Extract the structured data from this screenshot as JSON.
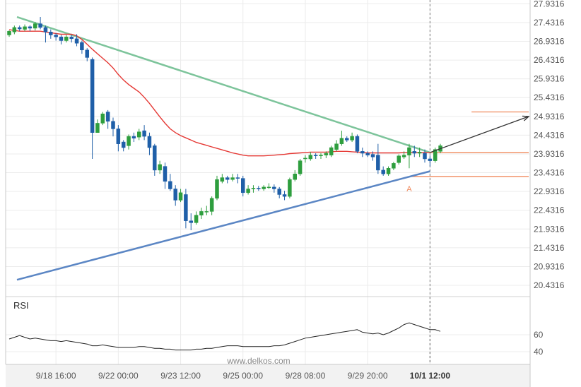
{
  "chart_data": {
    "type": "candlestick",
    "y_ticks": [
      "27.9316",
      "27.4316",
      "26.9316",
      "26.4316",
      "25.9316",
      "25.4316",
      "24.9316",
      "24.4316",
      "23.9316",
      "23.4316",
      "22.9316",
      "22.4316",
      "21.9316",
      "21.4316",
      "20.9316",
      "20.4316"
    ],
    "ylim": [
      20.1316,
      28.0316
    ],
    "x_ticks": [
      {
        "label": "9/18 16:00",
        "i": 9,
        "bold": false
      },
      {
        "label": "9/22 00:00",
        "i": 21,
        "bold": false
      },
      {
        "label": "9/23 12:00",
        "i": 33,
        "bold": false
      },
      {
        "label": "9/25 00:00",
        "i": 45,
        "bold": false
      },
      {
        "label": "9/28 08:00",
        "i": 57,
        "bold": false
      },
      {
        "label": "9/29 20:00",
        "i": 69,
        "bold": false
      },
      {
        "label": "10/1 12:00",
        "i": 81,
        "bold": true
      }
    ],
    "candles": [
      [
        27.1,
        27.2,
        27.05,
        27.22
      ],
      [
        27.18,
        27.3,
        27.12,
        27.35
      ],
      [
        27.3,
        27.26,
        27.2,
        27.35
      ],
      [
        27.25,
        27.32,
        27.2,
        27.38
      ],
      [
        27.32,
        27.28,
        27.2,
        27.36
      ],
      [
        27.28,
        27.4,
        27.22,
        27.45
      ],
      [
        27.4,
        27.3,
        27.25,
        27.58
      ],
      [
        27.3,
        27.18,
        26.9,
        27.35
      ],
      [
        27.18,
        27.1,
        27.0,
        27.25
      ],
      [
        27.1,
        27.05,
        26.95,
        27.15
      ],
      [
        27.05,
        26.95,
        26.85,
        27.1
      ],
      [
        26.95,
        27.05,
        26.9,
        27.1
      ],
      [
        27.05,
        27.0,
        26.9,
        27.1
      ],
      [
        27.0,
        26.88,
        26.8,
        27.12
      ],
      [
        26.9,
        26.7,
        26.6,
        26.95
      ],
      [
        26.7,
        26.5,
        26.4,
        26.75
      ],
      [
        26.45,
        24.5,
        23.8,
        26.5
      ],
      [
        24.5,
        24.75,
        24.5,
        24.85
      ],
      [
        24.75,
        25.0,
        24.7,
        25.05
      ],
      [
        25.05,
        24.8,
        24.6,
        25.1
      ],
      [
        24.8,
        24.6,
        24.4,
        24.9
      ],
      [
        24.6,
        24.2,
        24.0,
        24.7
      ],
      [
        24.25,
        24.1,
        24.0,
        24.3
      ],
      [
        24.15,
        24.4,
        24.05,
        24.45
      ],
      [
        24.4,
        24.35,
        24.25,
        24.5
      ],
      [
        24.38,
        24.52,
        24.3,
        24.6
      ],
      [
        24.55,
        24.4,
        24.3,
        24.7
      ],
      [
        24.4,
        24.1,
        23.9,
        24.5
      ],
      [
        24.15,
        23.5,
        23.35,
        24.2
      ],
      [
        23.5,
        23.65,
        23.4,
        23.75
      ],
      [
        23.6,
        23.2,
        23.0,
        23.7
      ],
      [
        23.2,
        23.0,
        22.95,
        23.4
      ],
      [
        23.0,
        22.7,
        22.55,
        23.1
      ],
      [
        22.7,
        22.9,
        22.65,
        23.0
      ],
      [
        22.85,
        22.15,
        21.95,
        23.0
      ],
      [
        22.15,
        22.1,
        21.9,
        22.35
      ],
      [
        22.1,
        22.3,
        22.05,
        22.4
      ],
      [
        22.3,
        22.4,
        22.2,
        22.5
      ],
      [
        22.4,
        22.4,
        22.3,
        22.55
      ],
      [
        22.4,
        22.75,
        22.3,
        22.8
      ],
      [
        22.75,
        23.25,
        22.7,
        23.35
      ],
      [
        23.2,
        23.3,
        23.15,
        23.4
      ],
      [
        23.3,
        23.25,
        23.15,
        23.35
      ],
      [
        23.25,
        23.3,
        23.2,
        23.4
      ],
      [
        23.3,
        23.28,
        23.15,
        23.4
      ],
      [
        23.28,
        22.9,
        22.8,
        23.35
      ],
      [
        22.9,
        23.0,
        22.85,
        23.1
      ],
      [
        23.0,
        23.02,
        22.9,
        23.1
      ],
      [
        23.02,
        23.0,
        22.95,
        23.08
      ],
      [
        23.0,
        23.05,
        22.95,
        23.1
      ],
      [
        23.05,
        23.05,
        23.0,
        23.15
      ],
      [
        23.05,
        23.0,
        22.9,
        23.12
      ],
      [
        23.0,
        22.85,
        22.75,
        23.05
      ],
      [
        22.85,
        22.8,
        22.7,
        22.95
      ],
      [
        22.8,
        23.25,
        22.75,
        23.3
      ],
      [
        23.25,
        23.4,
        23.2,
        23.5
      ],
      [
        23.4,
        23.75,
        23.35,
        23.8
      ],
      [
        23.8,
        23.82,
        23.7,
        23.9
      ],
      [
        23.8,
        23.9,
        23.75,
        23.98
      ],
      [
        23.9,
        23.88,
        23.8,
        23.95
      ],
      [
        23.88,
        23.9,
        23.8,
        23.95
      ],
      [
        23.9,
        23.95,
        23.82,
        24.0
      ],
      [
        23.9,
        24.1,
        23.85,
        24.15
      ],
      [
        24.05,
        24.2,
        24.0,
        24.3
      ],
      [
        24.2,
        24.35,
        24.15,
        24.55
      ],
      [
        24.35,
        24.3,
        24.25,
        24.4
      ],
      [
        24.3,
        24.4,
        24.25,
        24.5
      ],
      [
        24.4,
        24.0,
        23.95,
        24.45
      ],
      [
        24.0,
        23.95,
        23.85,
        24.1
      ],
      [
        23.95,
        23.9,
        23.85,
        24.0
      ],
      [
        23.92,
        23.85,
        23.75,
        24.0
      ],
      [
        23.9,
        23.5,
        23.4,
        24.2
      ],
      [
        23.5,
        23.4,
        23.35,
        23.6
      ],
      [
        23.4,
        23.55,
        23.35,
        23.6
      ],
      [
        23.55,
        23.68,
        23.5,
        23.72
      ],
      [
        23.7,
        23.88,
        23.65,
        23.92
      ],
      [
        23.85,
        23.9,
        23.8,
        24.0
      ],
      [
        23.9,
        24.1,
        23.55,
        24.2
      ],
      [
        24.0,
        23.95,
        23.85,
        24.15
      ],
      [
        23.95,
        23.98,
        23.85,
        24.1
      ],
      [
        23.95,
        23.8,
        23.7,
        24.05
      ],
      [
        23.8,
        23.75,
        23.6,
        23.9
      ],
      [
        23.75,
        24.05,
        23.7,
        24.1
      ],
      [
        24.0,
        24.15,
        23.95,
        24.2
      ]
    ],
    "ma": [
      27.24,
      27.22,
      27.2,
      27.2,
      27.2,
      27.2,
      27.2,
      27.18,
      27.16,
      27.14,
      27.12,
      27.12,
      27.12,
      27.08,
      26.98,
      26.85,
      26.72,
      26.6,
      26.48,
      26.36,
      26.22,
      26.05,
      25.9,
      25.78,
      25.68,
      25.58,
      25.44,
      25.28,
      25.1,
      24.92,
      24.75,
      24.6,
      24.5,
      24.42,
      24.36,
      24.3,
      24.24,
      24.2,
      24.16,
      24.12,
      24.08,
      24.04,
      24.0,
      23.96,
      23.93,
      23.9,
      23.88,
      23.88,
      23.88,
      23.88,
      23.89,
      23.9,
      23.91,
      23.92,
      23.94,
      23.95,
      23.96,
      23.97,
      23.98,
      23.98,
      23.98,
      23.98,
      23.99,
      24.0,
      24.0,
      24.0,
      23.99,
      23.98,
      23.97,
      23.96,
      23.96,
      23.96,
      23.96,
      23.96,
      23.96,
      23.96,
      23.97,
      23.97,
      23.97,
      23.97,
      23.97,
      23.97
    ],
    "rsi": [
      55,
      57,
      59,
      57,
      55,
      56,
      55,
      54,
      53,
      53,
      52,
      53,
      52,
      51,
      50,
      49,
      47,
      47,
      48,
      47,
      46,
      45,
      45,
      45,
      45,
      46,
      46,
      45,
      44,
      44,
      43,
      43,
      42,
      42,
      42,
      42,
      43,
      43,
      44,
      44,
      45,
      46,
      47,
      47,
      47,
      46,
      46,
      46,
      46,
      46,
      46,
      47,
      47,
      48,
      50,
      52,
      54,
      56,
      57,
      58,
      59,
      60,
      61,
      62,
      63,
      64,
      65,
      66,
      63,
      62,
      61,
      62,
      60,
      62,
      65,
      68,
      72,
      74,
      72,
      70,
      68,
      66,
      66,
      64
    ],
    "rsi_label": "RSI",
    "rsi_ticks": [
      "60",
      "40"
    ],
    "rsi_ylim": [
      25,
      105
    ],
    "pattern_lines": {
      "resistance": {
        "from": [
          1.5,
          27.58
        ],
        "to": [
          81,
          23.97
        ]
      },
      "support": {
        "from": [
          1.5,
          20.58
        ],
        "to": [
          81,
          23.47
        ]
      },
      "projection": {
        "from": [
          81,
          23.97
        ],
        "to": [
          100,
          24.93
        ]
      }
    },
    "levels": [
      {
        "name": "target",
        "value": 25.05,
        "i_start": 89,
        "i_end": 100
      },
      {
        "name": "breakout",
        "value": 23.97,
        "i_start": 81,
        "i_end": 100
      },
      {
        "name": "entry",
        "value": 23.33,
        "i_start": 77,
        "i_end": 100
      }
    ],
    "annotation": {
      "text": "A",
      "i": 77,
      "y": 23.2
    },
    "cursor_i": 81,
    "colors": {
      "up": "#2e9e3e",
      "down": "#1f5fa8",
      "ma": "#e53935",
      "resistance": "#7dc49b",
      "support": "#5b86c4",
      "projection": "#333333",
      "levels": "#f08a5d"
    },
    "watermark": "www.delkos.com"
  }
}
